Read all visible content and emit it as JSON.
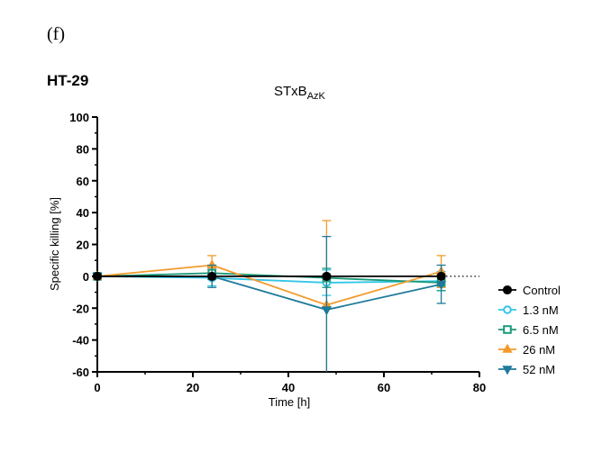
{
  "panel_label": "(f)",
  "cell_line_label": "HT-29",
  "chart_data": {
    "type": "line",
    "title": "STxB",
    "title_subscript": "AzK",
    "xlabel": "Time [h]",
    "ylabel": "Specific killing [%]",
    "xlim": [
      0,
      80
    ],
    "ylim": [
      -60,
      100
    ],
    "x_ticks": [
      0,
      20,
      40,
      60,
      80
    ],
    "y_ticks": [
      -60,
      -40,
      -20,
      0,
      20,
      40,
      60,
      80,
      100
    ],
    "x_tick_labels": [
      "0",
      "20",
      "40",
      "60",
      "80"
    ],
    "y_tick_labels": [
      "-60",
      "-40",
      "-20",
      "0",
      "20",
      "40",
      "60",
      "80",
      "100"
    ],
    "reference_line": {
      "y": 0,
      "style": "dotted"
    },
    "grid": false,
    "legend_position": "right",
    "x": [
      0,
      24,
      48,
      72
    ],
    "series": [
      {
        "name": "Control",
        "color": "#000000",
        "marker": "circle-filled",
        "values": [
          0,
          0,
          0,
          0
        ],
        "error": [
          0,
          0,
          0,
          0
        ]
      },
      {
        "name": "1.3 nM",
        "color": "#33c6e6",
        "marker": "circle-open",
        "values": [
          0,
          -1,
          -4,
          -3
        ],
        "error": [
          0,
          5,
          8,
          6
        ]
      },
      {
        "name": "6.5 nM",
        "color": "#1a9a7a",
        "marker": "square-open",
        "values": [
          0,
          2,
          -1,
          -4
        ],
        "error": [
          0,
          4,
          6,
          5
        ]
      },
      {
        "name": "26 nM",
        "color": "#f39a2b",
        "marker": "triangle-up",
        "values": [
          0,
          7,
          -18,
          3
        ],
        "error": [
          0,
          6,
          53,
          10
        ]
      },
      {
        "name": "52 nM",
        "color": "#1f7a9a",
        "marker": "triangle-down",
        "values": [
          0,
          0,
          -21,
          -5
        ],
        "error": [
          0,
          7,
          46,
          12
        ]
      }
    ]
  }
}
